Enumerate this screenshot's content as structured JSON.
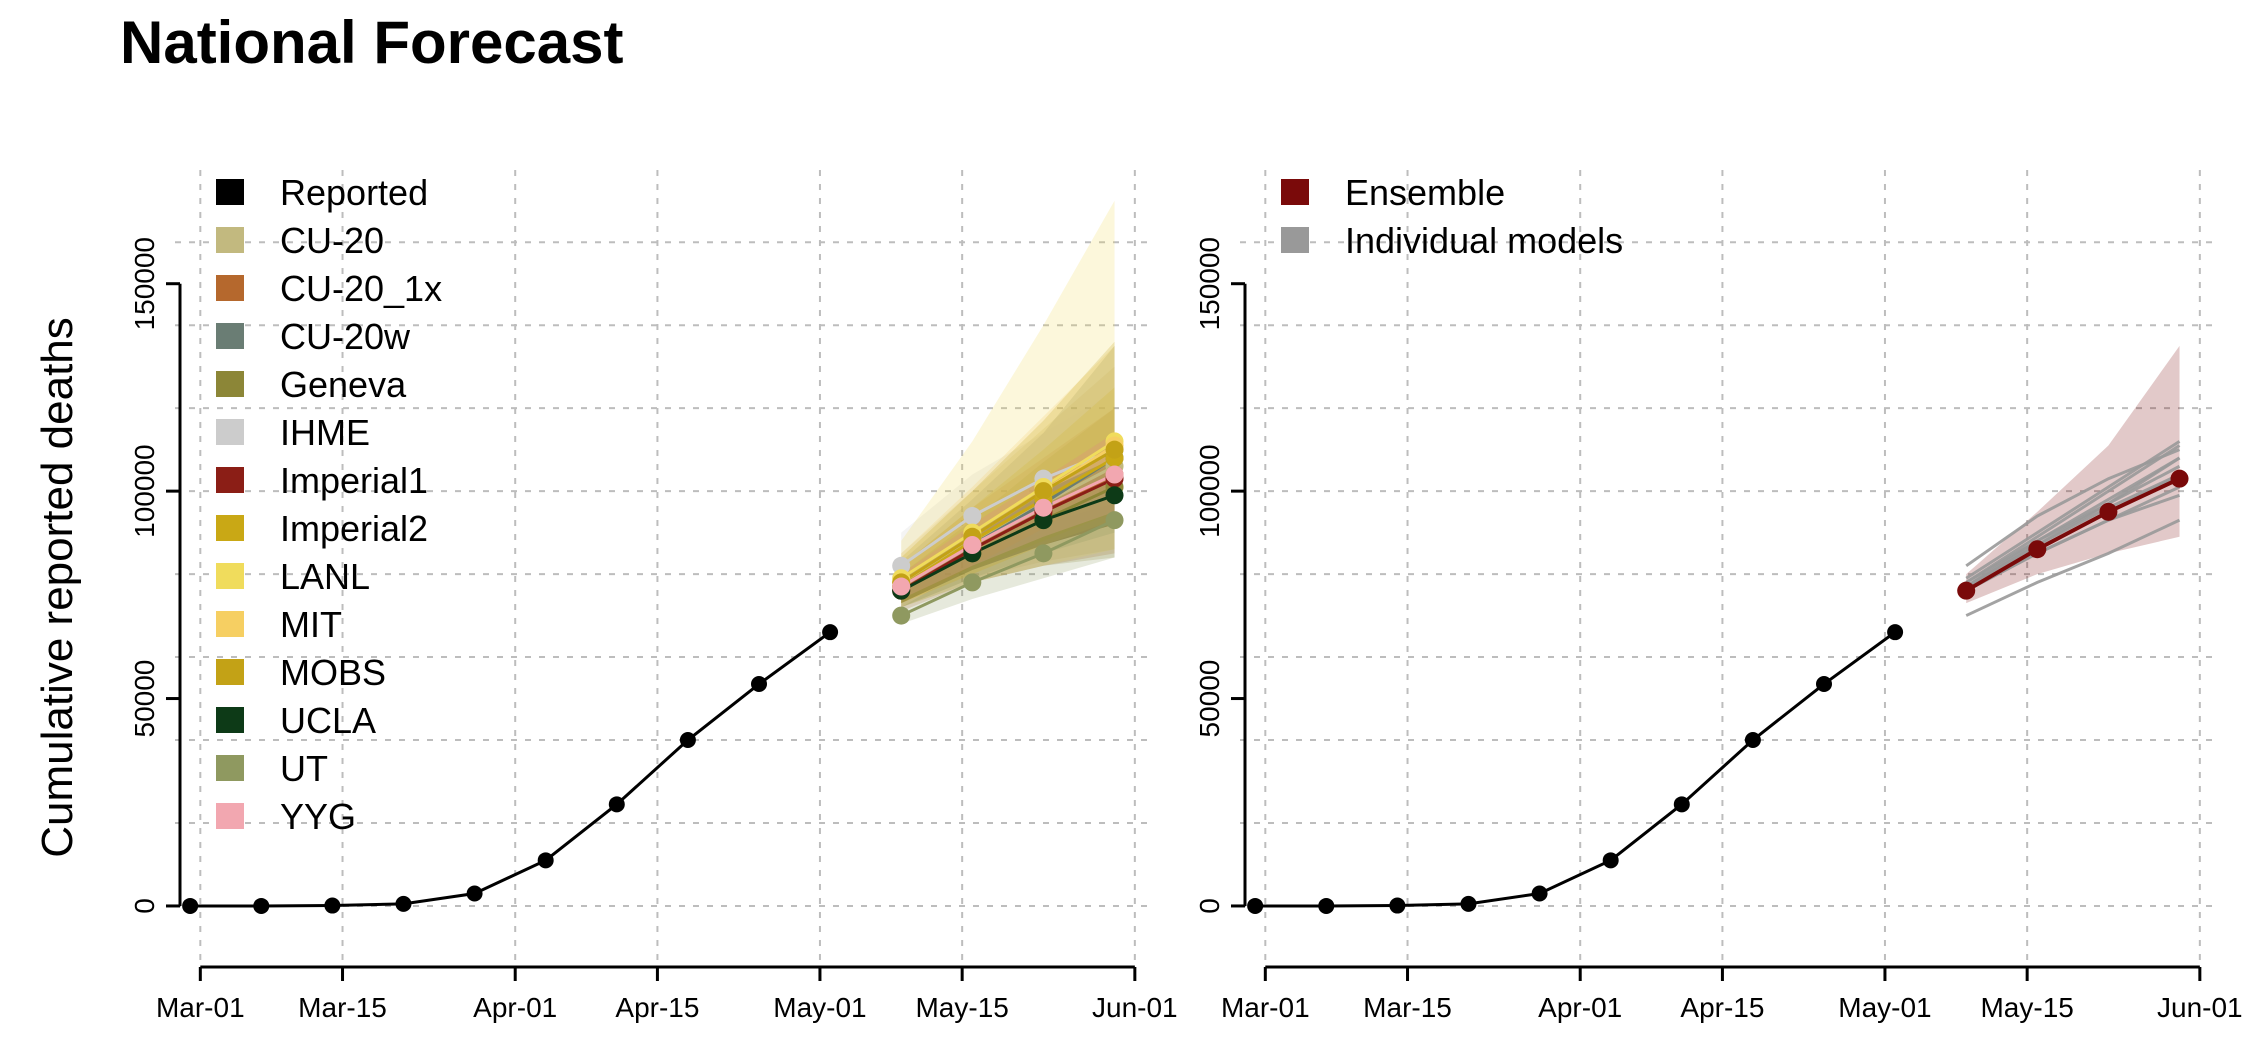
{
  "title": "National Forecast",
  "chart_data": [
    {
      "type": "line",
      "panel": "left",
      "ylabel": "Cumulative reported deaths",
      "xlim": [
        "2020-02-28",
        "2020-06-02"
      ],
      "ylim": [
        -7000,
        175000
      ],
      "x_ticks": [
        "2020-03-01",
        "2020-03-15",
        "2020-04-01",
        "2020-04-15",
        "2020-05-01",
        "2020-05-15",
        "2020-06-01"
      ],
      "x_tick_labels": [
        "Mar-01",
        "Mar-15",
        "Apr-01",
        "Apr-15",
        "May-01",
        "May-15",
        "Jun-01"
      ],
      "y_ticks": [
        0,
        50000,
        100000,
        150000
      ],
      "y_tick_labels": [
        "0",
        "50000",
        "100000",
        "150000"
      ],
      "grid": true,
      "legend_position": "top-left",
      "legend": [
        {
          "label": "Reported",
          "color": "#000000"
        },
        {
          "label": "CU-20",
          "color": "#c2b97f"
        },
        {
          "label": "CU-20_1x",
          "color": "#b5682d"
        },
        {
          "label": "CU-20w",
          "color": "#6a7d74"
        },
        {
          "label": "Geneva",
          "color": "#8c8637"
        },
        {
          "label": "IHME",
          "color": "#cccccc"
        },
        {
          "label": "Imperial1",
          "color": "#8b1e16"
        },
        {
          "label": "Imperial2",
          "color": "#c9a815"
        },
        {
          "label": "LANL",
          "color": "#f0dc5c"
        },
        {
          "label": "MIT",
          "color": "#f6cf62"
        },
        {
          "label": "MOBS",
          "color": "#c3a216"
        },
        {
          "label": "UCLA",
          "color": "#0d3a17"
        },
        {
          "label": "UT",
          "color": "#8f9960"
        },
        {
          "label": "YYG",
          "color": "#f2a7b0"
        }
      ],
      "reported": {
        "x": [
          "2020-02-29",
          "2020-03-07",
          "2020-03-14",
          "2020-03-21",
          "2020-03-28",
          "2020-04-04",
          "2020-04-11",
          "2020-04-18",
          "2020-04-25",
          "2020-05-02"
        ],
        "y": [
          0,
          0,
          100,
          500,
          3000,
          11000,
          24500,
          40000,
          53500,
          66000
        ]
      },
      "forecast_x": [
        "2020-05-09",
        "2020-05-16",
        "2020-05-23",
        "2020-05-30"
      ],
      "series": [
        {
          "color": "#c2b97f",
          "y": [
            78000,
            88000,
            97000,
            106000
          ],
          "lower": [
            72000,
            79000,
            83000,
            86000
          ],
          "upper": [
            85000,
            100000,
            115000,
            130000
          ]
        },
        {
          "color": "#b5682d",
          "y": [
            76000,
            86000,
            95000,
            104000
          ],
          "lower": [
            71000,
            78000,
            82000,
            85000
          ],
          "upper": [
            82000,
            96000,
            108000,
            120000
          ]
        },
        {
          "color": "#6a7d74",
          "y": [
            77000,
            87000,
            97000,
            108000
          ],
          "lower": [
            72000,
            79000,
            85000,
            90000
          ],
          "upper": [
            83000,
            98000,
            114000,
            135000
          ]
        },
        {
          "color": "#8c8637",
          "y": [
            76000,
            85000,
            93000,
            101000
          ],
          "lower": [
            72000,
            78000,
            82000,
            84000
          ],
          "upper": [
            80000,
            93000,
            107000,
            120000
          ]
        },
        {
          "color": "#cccccc",
          "y": [
            82000,
            94000,
            103000,
            110000
          ],
          "lower": [
            75000,
            85000,
            92000,
            97000
          ],
          "upper": [
            90000,
            104000,
            114000,
            124000
          ]
        },
        {
          "color": "#8b1e16",
          "y": [
            76000,
            86000,
            95000,
            103000
          ],
          "lower": [
            73000,
            81000,
            87000,
            92000
          ],
          "upper": [
            80000,
            92000,
            103000,
            114000
          ]
        },
        {
          "color": "#c9a815",
          "y": [
            77000,
            88000,
            98000,
            108000
          ],
          "lower": [
            73000,
            81000,
            88000,
            95000
          ],
          "upper": [
            82000,
            96000,
            110000,
            125000
          ]
        },
        {
          "color": "#f0dc5c",
          "y": [
            79000,
            90000,
            101000,
            112000
          ],
          "lower": [
            72000,
            78000,
            82000,
            86000
          ],
          "upper": [
            88000,
            112000,
            140000,
            170000
          ]
        },
        {
          "color": "#f6cf62",
          "y": [
            78000,
            89000,
            100000,
            111000
          ],
          "lower": [
            73000,
            80000,
            87000,
            93000
          ],
          "upper": [
            85000,
            101000,
            118000,
            135000
          ]
        },
        {
          "color": "#c3a216",
          "y": [
            78000,
            89000,
            100000,
            110000
          ],
          "lower": [
            73000,
            80000,
            87000,
            92000
          ],
          "upper": [
            84000,
            100000,
            117000,
            136000
          ]
        },
        {
          "color": "#0d3a17",
          "y": [
            76000,
            85000,
            93000,
            99000
          ],
          "lower": [
            73000,
            81000,
            87000,
            92000
          ],
          "upper": [
            79000,
            90000,
            100000,
            108000
          ]
        },
        {
          "color": "#8f9960",
          "y": [
            70000,
            78000,
            85000,
            93000
          ],
          "lower": [
            68000,
            74000,
            79000,
            84000
          ],
          "upper": [
            72000,
            82000,
            91000,
            102000
          ]
        },
        {
          "color": "#f2a7b0",
          "y": [
            77000,
            87000,
            96000,
            104000
          ],
          "lower": [
            74000,
            82000,
            89000,
            95000
          ],
          "upper": [
            80000,
            92000,
            103000,
            114000
          ]
        }
      ]
    },
    {
      "type": "line",
      "panel": "right",
      "ylabel": "",
      "xlim": [
        "2020-02-28",
        "2020-06-02"
      ],
      "ylim": [
        -7000,
        175000
      ],
      "x_ticks": [
        "2020-03-01",
        "2020-03-15",
        "2020-04-01",
        "2020-04-15",
        "2020-05-01",
        "2020-05-15",
        "2020-06-01"
      ],
      "x_tick_labels": [
        "Mar-01",
        "Mar-15",
        "Apr-01",
        "Apr-15",
        "May-01",
        "May-15",
        "Jun-01"
      ],
      "y_ticks": [
        0,
        50000,
        100000,
        150000
      ],
      "y_tick_labels": [
        "0",
        "50000",
        "100000",
        "150000"
      ],
      "grid": true,
      "legend_position": "top-left",
      "legend": [
        {
          "label": "Ensemble",
          "color": "#7a0a0a"
        },
        {
          "label": "Individual models",
          "color": "#999999"
        }
      ],
      "reported": {
        "x": [
          "2020-02-29",
          "2020-03-07",
          "2020-03-14",
          "2020-03-21",
          "2020-03-28",
          "2020-04-04",
          "2020-04-11",
          "2020-04-18",
          "2020-04-25",
          "2020-05-02"
        ],
        "y": [
          0,
          0,
          100,
          500,
          3000,
          11000,
          24500,
          40000,
          53500,
          66000
        ]
      },
      "forecast_x": [
        "2020-05-09",
        "2020-05-16",
        "2020-05-23",
        "2020-05-30"
      ],
      "ensemble": {
        "color": "#7a0a0a",
        "y": [
          76000,
          86000,
          95000,
          103000
        ],
        "lower": [
          73000,
          80000,
          85000,
          89000
        ],
        "upper": [
          80000,
          95000,
          111000,
          135000
        ]
      },
      "individual_models": [
        [
          78000,
          88000,
          97000,
          106000
        ],
        [
          76000,
          86000,
          95000,
          104000
        ],
        [
          77000,
          87000,
          97000,
          108000
        ],
        [
          76000,
          85000,
          93000,
          101000
        ],
        [
          82000,
          94000,
          103000,
          110000
        ],
        [
          77000,
          88000,
          98000,
          108000
        ],
        [
          79000,
          90000,
          101000,
          112000
        ],
        [
          78000,
          89000,
          100000,
          111000
        ],
        [
          76000,
          85000,
          93000,
          99000
        ],
        [
          70000,
          78000,
          85000,
          93000
        ],
        [
          77000,
          87000,
          96000,
          104000
        ]
      ],
      "individual_color": "#999999"
    }
  ]
}
